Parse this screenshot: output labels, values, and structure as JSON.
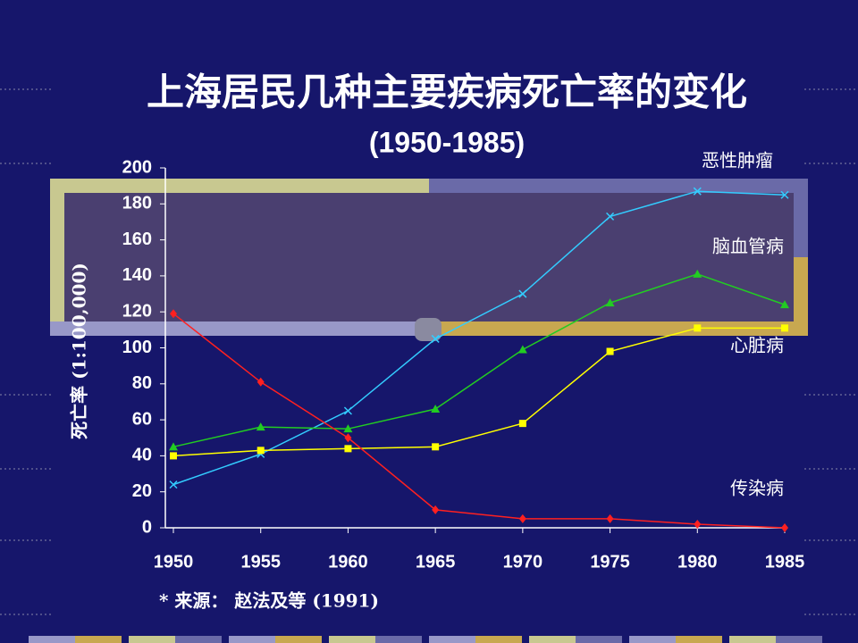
{
  "chart_data": {
    "type": "line",
    "title": "上海居民几种主要疾病死亡率的变化",
    "subtitle": "(1950-1985)",
    "y_label": "死亡率 (1:100,000)",
    "source": "* 来源： 赵法及等 (1991)",
    "x": [
      1950,
      1955,
      1960,
      1965,
      1970,
      1975,
      1980,
      1985
    ],
    "xlim": [
      1950,
      1985
    ],
    "xticks": [
      1950,
      1955,
      1960,
      1965,
      1970,
      1975,
      1980,
      1985
    ],
    "ylim": [
      0,
      200
    ],
    "yticks": [
      0,
      20,
      40,
      60,
      80,
      100,
      120,
      140,
      160,
      180,
      200
    ],
    "series": [
      {
        "name": "恶性肿瘤",
        "color": "#33ccff",
        "marker": "x",
        "values": [
          24,
          41,
          65,
          105,
          130,
          173,
          187,
          185
        ]
      },
      {
        "name": "脑血管病",
        "color": "#22cc22",
        "marker": "triangle",
        "values": [
          45,
          56,
          55,
          66,
          99,
          125,
          141,
          124
        ]
      },
      {
        "name": "心脏病",
        "color": "#ffff00",
        "marker": "square",
        "values": [
          40,
          43,
          44,
          45,
          58,
          98,
          111,
          111
        ]
      },
      {
        "name": "传染病",
        "color": "#ff2020",
        "marker": "diamond",
        "values": [
          119,
          81,
          50,
          10,
          5,
          5,
          2,
          0
        ]
      }
    ]
  }
}
